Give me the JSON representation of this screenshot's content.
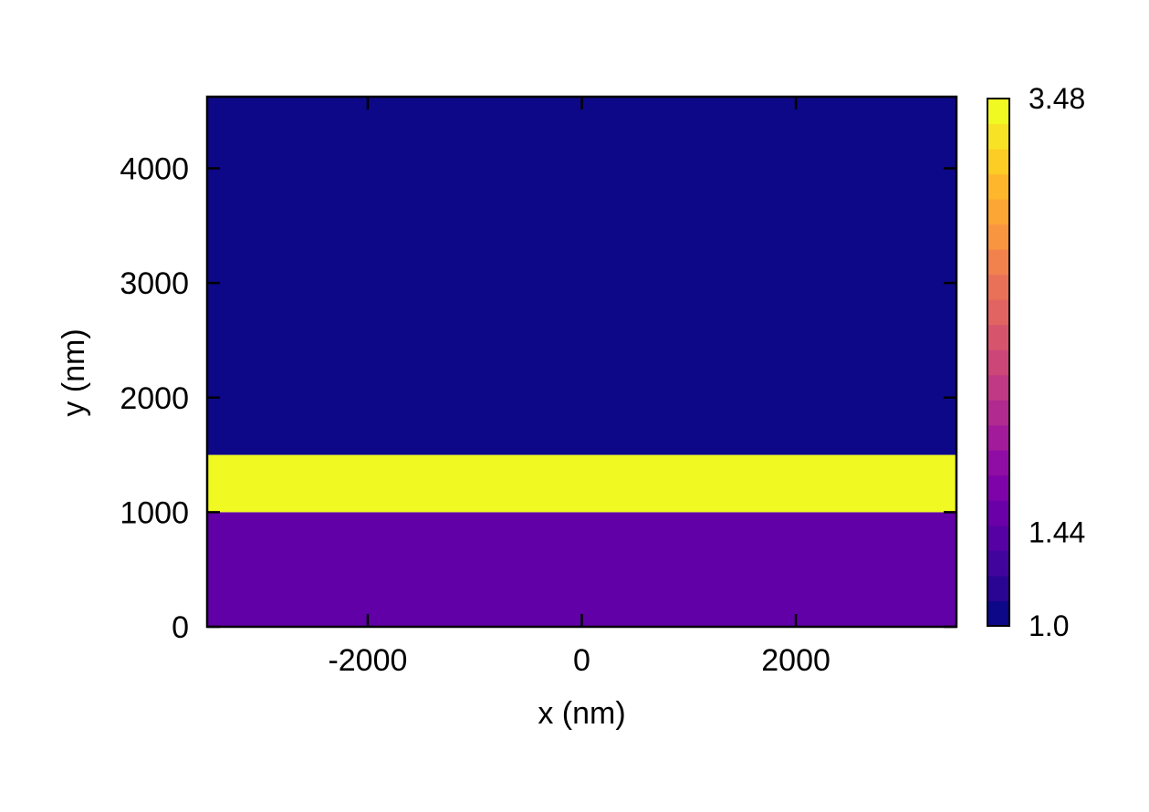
{
  "chart_data": {
    "type": "heatmap",
    "title": "",
    "xlabel": "x (nm)",
    "ylabel": "y (nm)",
    "xlim": [
      -3500,
      3500
    ],
    "ylim": [
      0,
      4625
    ],
    "xticks": [
      -2000,
      0,
      2000
    ],
    "xtick_labels": [
      "-2000",
      "0",
      "2000"
    ],
    "yticks": [
      0,
      1000,
      2000,
      3000,
      4000
    ],
    "ytick_labels": [
      "0",
      "1000",
      "2000",
      "3000",
      "4000"
    ],
    "colormap": "plasma",
    "regions": [
      {
        "y_range": [
          0,
          1000
        ],
        "value": 1.44,
        "color": "#6100a7"
      },
      {
        "y_range": [
          1000,
          1500
        ],
        "value": 3.48,
        "color": "#f0f921"
      },
      {
        "y_range": [
          1500,
          4625
        ],
        "value": 1.0,
        "color": "#0d0887"
      }
    ],
    "colorbar": {
      "min": 1.0,
      "max": 3.48,
      "ticks": [
        1.0,
        1.44,
        3.48
      ],
      "tick_labels": [
        "1.0",
        "1.44",
        "3.48"
      ]
    },
    "grid": false
  }
}
